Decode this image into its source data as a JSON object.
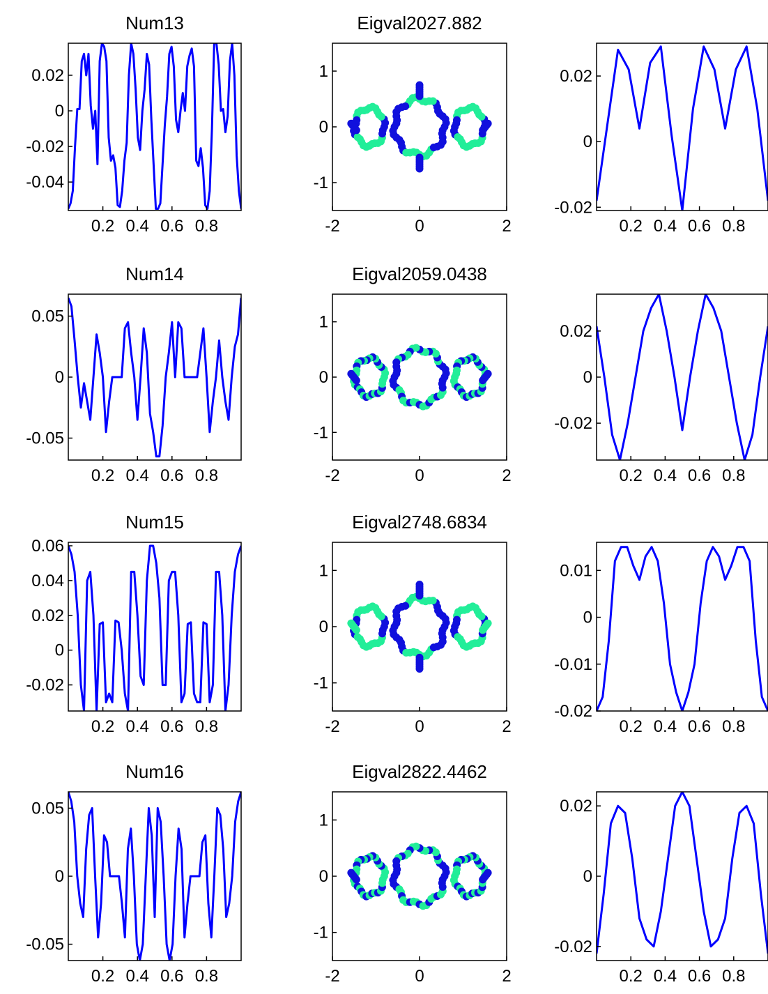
{
  "figure": {
    "colors": {
      "line": "#0000ff",
      "ring_dark": "#1010dd",
      "ring_light": "#22ee99",
      "axes": "#000000"
    }
  },
  "chart_data": [
    {
      "type": "line",
      "title": "Num13",
      "x_range": [
        0,
        1
      ],
      "ylim": [
        -0.056,
        0.038
      ],
      "xticks": [
        0.2,
        0.4,
        0.6,
        0.8
      ],
      "xtick_labels": [
        "0.2",
        "0.4",
        "0.6",
        "0.8"
      ],
      "yticks": [
        0.02,
        0,
        -0.02,
        -0.04
      ],
      "ytick_labels": [
        "0.02",
        "0",
        "-0.02",
        "-0.04"
      ],
      "series": [
        {
          "values": [
            -0.055,
            -0.052,
            -0.045,
            -0.02,
            0.001,
            0.001,
            0.028,
            0.032,
            0.02,
            0.032,
            0.003,
            -0.01,
            0.0,
            -0.03,
            0.028,
            0.038,
            0.036,
            0.028,
            -0.015,
            -0.028,
            -0.025,
            -0.032,
            -0.053,
            -0.054,
            -0.045,
            -0.028,
            -0.018,
            0.02,
            0.038,
            0.032,
            0.012,
            -0.015,
            -0.022,
            0.0,
            0.012,
            0.032,
            0.026,
            -0.005,
            -0.03,
            -0.055,
            -0.055,
            -0.052,
            -0.03,
            -0.008,
            0.008,
            0.032,
            0.036,
            0.025,
            -0.005,
            -0.012,
            0.0,
            0.01,
            0.0,
            0.025,
            0.031,
            0.035,
            0.025,
            -0.028,
            -0.031,
            -0.021,
            -0.032,
            -0.053,
            -0.055,
            -0.045,
            -0.01,
            0.038,
            0.038,
            0.026,
            0.0,
            0.001,
            -0.012,
            -0.003,
            0.028,
            0.038,
            0.02,
            -0.025,
            -0.045,
            -0.055
          ]
        }
      ]
    },
    {
      "type": "scatter",
      "title": "Eigval2027.882",
      "xlim": [
        -2,
        2
      ],
      "ylim": [
        -1.5,
        1.5
      ],
      "xticks": [
        -2,
        0,
        2
      ],
      "xtick_labels": [
        "-2",
        "0",
        "2"
      ],
      "yticks": [
        1,
        0,
        -1
      ],
      "ytick_labels": [
        "1",
        "0",
        "-1"
      ],
      "variant": "A"
    },
    {
      "type": "line",
      "title": "",
      "x_range": [
        0,
        1
      ],
      "ylim": [
        -0.021,
        0.03
      ],
      "xticks": [
        0.2,
        0.4,
        0.6,
        0.8
      ],
      "xtick_labels": [
        "0.2",
        "0.4",
        "0.6",
        "0.8"
      ],
      "yticks": [
        0.02,
        0,
        -0.02
      ],
      "ytick_labels": [
        "0.02",
        "0",
        "-0.02"
      ],
      "series": [
        {
          "values": [
            -0.018,
            0.005,
            0.028,
            0.022,
            0.004,
            0.024,
            0.029,
            0.002,
            -0.021,
            0.01,
            0.029,
            0.022,
            0.004,
            0.022,
            0.029,
            0.01,
            -0.018
          ]
        }
      ]
    },
    {
      "type": "line",
      "title": "Num14",
      "x_range": [
        0,
        1
      ],
      "ylim": [
        -0.068,
        0.068
      ],
      "xticks": [
        0.2,
        0.4,
        0.6,
        0.8
      ],
      "xtick_labels": [
        "0.2",
        "0.4",
        "0.6",
        "0.8"
      ],
      "yticks": [
        0.05,
        0,
        -0.05
      ],
      "ytick_labels": [
        "0.05",
        "0",
        "-0.05"
      ],
      "series": [
        {
          "values": [
            0.065,
            0.058,
            0.03,
            0.0,
            -0.025,
            -0.005,
            -0.02,
            -0.035,
            0.0,
            0.035,
            0.02,
            0.0,
            -0.045,
            -0.02,
            0.0,
            0.0,
            0.0,
            0.0,
            0.04,
            0.045,
            0.02,
            0.0,
            -0.035,
            0.0,
            0.04,
            0.02,
            -0.03,
            -0.045,
            -0.065,
            -0.065,
            -0.04,
            0.0,
            0.02,
            0.045,
            0.0,
            0.045,
            0.04,
            0.0,
            0.0,
            0.0,
            0.0,
            0.0,
            0.02,
            0.04,
            0.0,
            -0.045,
            -0.02,
            0.0,
            0.03,
            0.0,
            -0.02,
            -0.035,
            0.0,
            0.025,
            0.035,
            0.065
          ]
        }
      ]
    },
    {
      "type": "scatter",
      "title": "Eigval2059.0438",
      "xlim": [
        -2,
        2
      ],
      "ylim": [
        -1.5,
        1.5
      ],
      "xticks": [
        -2,
        0,
        2
      ],
      "xtick_labels": [
        "-2",
        "0",
        "2"
      ],
      "yticks": [
        1,
        0,
        -1
      ],
      "ytick_labels": [
        "1",
        "0",
        "-1"
      ],
      "variant": "B"
    },
    {
      "type": "line",
      "title": "",
      "x_range": [
        0,
        1
      ],
      "ylim": [
        -0.036,
        0.036
      ],
      "xticks": [
        0.2,
        0.4,
        0.6,
        0.8
      ],
      "xtick_labels": [
        "0.2",
        "0.4",
        "0.6",
        "0.8"
      ],
      "yticks": [
        0.02,
        0,
        -0.02
      ],
      "ytick_labels": [
        "0.02",
        "0",
        "-0.02"
      ],
      "series": [
        {
          "values": [
            0.022,
            0.0,
            -0.025,
            -0.036,
            -0.02,
            0.0,
            0.02,
            0.03,
            0.036,
            0.02,
            0.0,
            -0.023,
            0.0,
            0.02,
            0.036,
            0.03,
            0.02,
            0.0,
            -0.02,
            -0.036,
            -0.025,
            0.0,
            0.022
          ]
        }
      ]
    },
    {
      "type": "line",
      "title": "Num15",
      "x_range": [
        0,
        1
      ],
      "ylim": [
        -0.035,
        0.062
      ],
      "xticks": [
        0.2,
        0.4,
        0.6,
        0.8
      ],
      "xtick_labels": [
        "0.2",
        "0.4",
        "0.6",
        "0.8"
      ],
      "yticks": [
        0.06,
        0.04,
        0.02,
        0,
        -0.02
      ],
      "ytick_labels": [
        "0.06",
        "0.04",
        "0.02",
        "0",
        "-0.02"
      ],
      "series": [
        {
          "values": [
            0.06,
            0.055,
            0.045,
            0.02,
            -0.02,
            -0.035,
            0.04,
            0.045,
            0.02,
            -0.035,
            0.015,
            0.016,
            -0.03,
            -0.025,
            -0.03,
            0.017,
            0.016,
            0.0,
            -0.025,
            -0.035,
            0.045,
            0.045,
            0.02,
            -0.015,
            -0.02,
            0.04,
            0.06,
            0.06,
            0.05,
            0.03,
            -0.02,
            -0.02,
            0.04,
            0.045,
            0.045,
            0.02,
            -0.03,
            -0.025,
            0.015,
            0.016,
            -0.025,
            -0.03,
            -0.03,
            0.016,
            0.015,
            -0.03,
            -0.02,
            0.045,
            0.045,
            0.02,
            -0.035,
            -0.02,
            0.02,
            0.045,
            0.055,
            0.06
          ]
        }
      ]
    },
    {
      "type": "scatter",
      "title": "Eigval2748.6834",
      "xlim": [
        -2,
        2
      ],
      "ylim": [
        -1.5,
        1.5
      ],
      "xticks": [
        -2,
        0,
        2
      ],
      "xtick_labels": [
        "-2",
        "0",
        "2"
      ],
      "yticks": [
        1,
        0,
        -1
      ],
      "ytick_labels": [
        "1",
        "0",
        "-1"
      ],
      "variant": "C"
    },
    {
      "type": "line",
      "title": "",
      "x_range": [
        0,
        1
      ],
      "ylim": [
        -0.02,
        0.016
      ],
      "xticks": [
        0.2,
        0.4,
        0.6,
        0.8
      ],
      "xtick_labels": [
        "0.2",
        "0.4",
        "0.6",
        "0.8"
      ],
      "yticks": [
        0.01,
        0,
        -0.01,
        -0.02
      ],
      "ytick_labels": [
        "0.01",
        "0",
        "-0.01",
        "-0.02"
      ],
      "series": [
        {
          "values": [
            -0.02,
            -0.017,
            -0.005,
            0.012,
            0.015,
            0.015,
            0.011,
            0.008,
            0.013,
            0.015,
            0.012,
            0.003,
            -0.01,
            -0.016,
            -0.02,
            -0.016,
            -0.01,
            0.003,
            0.012,
            0.015,
            0.013,
            0.008,
            0.011,
            0.015,
            0.015,
            0.012,
            -0.005,
            -0.017,
            -0.02
          ]
        }
      ]
    },
    {
      "type": "line",
      "title": "Num16",
      "x_range": [
        0,
        1
      ],
      "ylim": [
        -0.062,
        0.062
      ],
      "xticks": [
        0.2,
        0.4,
        0.6,
        0.8
      ],
      "xtick_labels": [
        "0.2",
        "0.4",
        "0.6",
        "0.8"
      ],
      "yticks": [
        0.05,
        0,
        -0.05
      ],
      "ytick_labels": [
        "0.05",
        "0",
        "-0.05"
      ],
      "series": [
        {
          "values": [
            0.062,
            0.055,
            0.04,
            0.0,
            -0.02,
            -0.03,
            0.02,
            0.045,
            0.05,
            0.0,
            -0.045,
            -0.02,
            0.03,
            0.025,
            0.0,
            0.0,
            0.0,
            0.0,
            -0.02,
            -0.045,
            0.02,
            0.035,
            0.0,
            -0.05,
            -0.062,
            -0.05,
            0.0,
            0.05,
            0.03,
            -0.03,
            0.05,
            0.04,
            0.0,
            -0.05,
            -0.062,
            -0.05,
            0.0,
            0.035,
            0.02,
            -0.045,
            -0.02,
            0.0,
            0.0,
            0.0,
            0.0,
            0.025,
            0.03,
            -0.02,
            -0.045,
            0.0,
            0.05,
            0.045,
            0.02,
            -0.03,
            -0.02,
            0.0,
            0.04,
            0.055,
            0.062
          ]
        }
      ]
    },
    {
      "type": "scatter",
      "title": "Eigval2822.4462",
      "xlim": [
        -2,
        2
      ],
      "ylim": [
        -1.5,
        1.5
      ],
      "xticks": [
        -2,
        0,
        2
      ],
      "xtick_labels": [
        "-2",
        "0",
        "2"
      ],
      "yticks": [
        1,
        0,
        -1
      ],
      "ytick_labels": [
        "1",
        "0",
        "-1"
      ],
      "variant": "D"
    },
    {
      "type": "line",
      "title": "",
      "x_range": [
        0,
        1
      ],
      "ylim": [
        -0.024,
        0.024
      ],
      "xticks": [
        0.2,
        0.4,
        0.6,
        0.8
      ],
      "xtick_labels": [
        "0.2",
        "0.4",
        "0.6",
        "0.8"
      ],
      "yticks": [
        0.02,
        0,
        -0.02
      ],
      "ytick_labels": [
        "0.02",
        "0",
        "-0.02"
      ],
      "series": [
        {
          "values": [
            -0.022,
            -0.005,
            0.015,
            0.02,
            0.018,
            0.005,
            -0.012,
            -0.018,
            -0.02,
            -0.01,
            0.005,
            0.02,
            0.024,
            0.02,
            0.005,
            -0.01,
            -0.02,
            -0.018,
            -0.012,
            0.005,
            0.018,
            0.02,
            0.015,
            -0.005,
            -0.022
          ]
        }
      ]
    }
  ]
}
